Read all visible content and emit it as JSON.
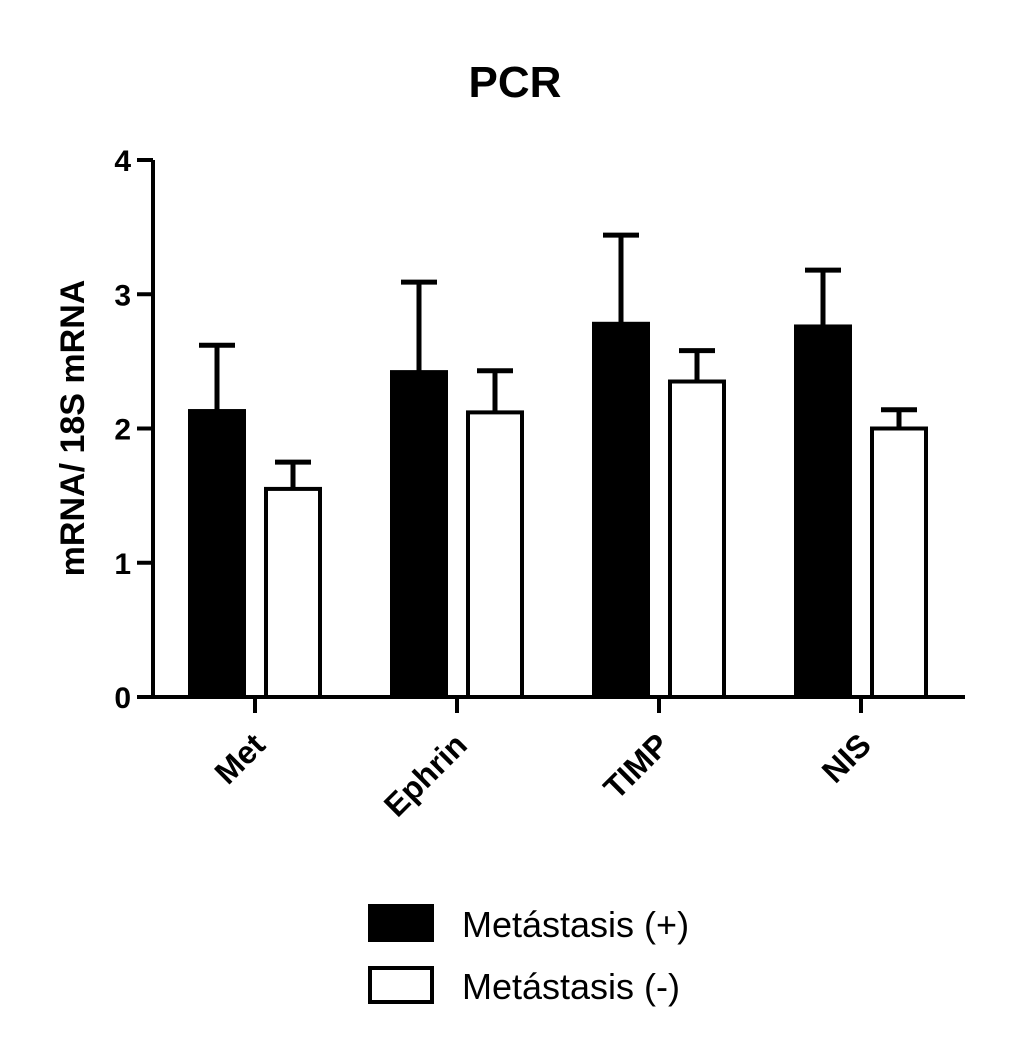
{
  "chart_data": {
    "type": "bar",
    "title": "PCR",
    "xlabel": "",
    "ylabel": "mRNA/ 18S mRNA",
    "ylim": [
      0,
      4
    ],
    "yticks": [
      "0",
      "1",
      "2",
      "3",
      "4"
    ],
    "categories": [
      "Met",
      "Ephrin",
      "TIMP",
      "NIS"
    ],
    "series": [
      {
        "name": "Metástasis (+)",
        "fill": "#000000",
        "values": [
          2.13,
          2.42,
          2.78,
          2.76
        ],
        "errors": [
          0.49,
          0.67,
          0.66,
          0.42
        ]
      },
      {
        "name": "Metástasis (-)",
        "fill": "#ffffff",
        "values": [
          1.55,
          2.12,
          2.35,
          2.0
        ],
        "errors": [
          0.2,
          0.31,
          0.23,
          0.14
        ]
      }
    ],
    "legend_position": "bottom-center",
    "grid": false
  }
}
